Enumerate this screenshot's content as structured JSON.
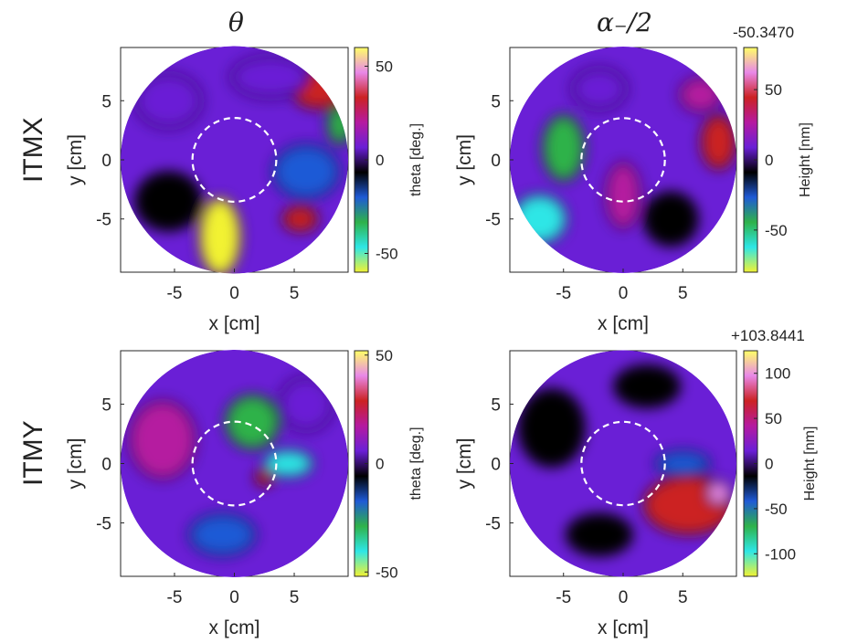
{
  "column_titles": [
    "θ",
    "α₋/2"
  ],
  "row_titles": [
    "ITMX",
    "ITMY"
  ],
  "offsets": [
    "-50.3470",
    "+103.8441"
  ],
  "colormap": [
    "#f2f233",
    "#2ee6e6",
    "#2fb24a",
    "#1f5ad6",
    "#000000",
    "#6a1fd6",
    "#b51aa0",
    "#cc2222",
    "#e888e8",
    "#ffff66"
  ],
  "chart_data": [
    {
      "type": "heatmap",
      "name": "ITMX theta",
      "xlabel": "x [cm]",
      "ylabel": "y [cm]",
      "xlim": [
        -9.5,
        9.5
      ],
      "ylim": [
        -9.5,
        9.5
      ],
      "xticks": [
        -5,
        0,
        5
      ],
      "yticks": [
        -5,
        0,
        5
      ],
      "aperture_radius_cm": 9.5,
      "dashed_circle_radius_cm": 3.5,
      "colorbar": {
        "label": "theta [deg.]",
        "range": [
          -60,
          60
        ],
        "ticks": [
          50,
          0,
          -50
        ]
      },
      "features": [
        {
          "x": -1.2,
          "y": -6.5,
          "value": -55,
          "rx": 1.5,
          "ry": 3.0
        },
        {
          "x": 7.0,
          "y": 6.0,
          "value": 35,
          "rx": 2.0,
          "ry": 1.4
        },
        {
          "x": 5.5,
          "y": -5.0,
          "value": 35,
          "rx": 1.2,
          "ry": 0.8
        },
        {
          "x": 8.8,
          "y": 3.0,
          "value": -35,
          "rx": 0.8,
          "ry": 1.4
        },
        {
          "x": 6.0,
          "y": -1.0,
          "value": -25,
          "rx": 2.5,
          "ry": 2.0
        },
        {
          "x": -5.5,
          "y": 5.0,
          "value": 12,
          "rx": 2.5,
          "ry": 2.0
        },
        {
          "x": 3.0,
          "y": 7.0,
          "value": 10,
          "rx": 3.0,
          "ry": 1.5
        },
        {
          "x": -5.5,
          "y": -3.5,
          "value": -10,
          "rx": 2.5,
          "ry": 2.2
        }
      ]
    },
    {
      "type": "heatmap",
      "name": "ITMX alpha",
      "xlabel": "x [cm]",
      "ylabel": "y [cm]",
      "xlim": [
        -9.5,
        9.5
      ],
      "ylim": [
        -9.5,
        9.5
      ],
      "xticks": [
        -5,
        0,
        5
      ],
      "yticks": [
        -5,
        0,
        5
      ],
      "aperture_radius_cm": 9.5,
      "dashed_circle_radius_cm": 3.5,
      "colorbar": {
        "label": "Height [nm]",
        "range": [
          -80,
          80
        ],
        "ticks": [
          50,
          0,
          -50
        ]
      },
      "features": [
        {
          "x": -7.0,
          "y": -5.0,
          "value": -60,
          "rx": 2.0,
          "ry": 1.8
        },
        {
          "x": -5.0,
          "y": 1.0,
          "value": -45,
          "rx": 1.5,
          "ry": 2.5
        },
        {
          "x": 8.0,
          "y": 1.5,
          "value": 40,
          "rx": 1.2,
          "ry": 2.0
        },
        {
          "x": 6.5,
          "y": 5.5,
          "value": 25,
          "rx": 1.5,
          "ry": 1.2
        },
        {
          "x": 4.0,
          "y": -5.0,
          "value": -15,
          "rx": 2.0,
          "ry": 2.0
        },
        {
          "x": 0.0,
          "y": -3.0,
          "value": 25,
          "rx": 1.2,
          "ry": 2.5
        },
        {
          "x": -2.0,
          "y": 6.0,
          "value": 15,
          "rx": 2.0,
          "ry": 1.5
        }
      ]
    },
    {
      "type": "heatmap",
      "name": "ITMY theta",
      "xlabel": "x [cm]",
      "ylabel": "y [cm]",
      "xlim": [
        -9.5,
        9.5
      ],
      "ylim": [
        -9.5,
        9.5
      ],
      "xticks": [
        -5,
        0,
        5
      ],
      "yticks": [
        -5,
        0,
        5
      ],
      "aperture_radius_cm": 9.5,
      "dashed_circle_radius_cm": 3.5,
      "colorbar": {
        "label": "theta [deg.]",
        "range": [
          -52,
          52
        ],
        "ticks": [
          50,
          0,
          -50
        ]
      },
      "features": [
        {
          "x": 4.5,
          "y": 0.0,
          "value": -45,
          "rx": 1.8,
          "ry": 0.9
        },
        {
          "x": 2.5,
          "y": -1.2,
          "value": 30,
          "rx": 0.5,
          "ry": 0.4
        },
        {
          "x": 1.5,
          "y": 3.5,
          "value": -25,
          "rx": 2.0,
          "ry": 2.0
        },
        {
          "x": -1.0,
          "y": -6.0,
          "value": -15,
          "rx": 2.5,
          "ry": 1.5
        },
        {
          "x": -6.0,
          "y": 2.0,
          "value": 12,
          "rx": 2.5,
          "ry": 3.0
        },
        {
          "x": 6.0,
          "y": 5.0,
          "value": 10,
          "rx": 2.0,
          "ry": 2.0
        }
      ]
    },
    {
      "type": "heatmap",
      "name": "ITMY alpha",
      "xlabel": "x [cm]",
      "ylabel": "y [cm]",
      "xlim": [
        -9.5,
        9.5
      ],
      "ylim": [
        -9.5,
        9.5
      ],
      "xticks": [
        -5,
        0,
        5
      ],
      "yticks": [
        -5,
        0,
        5
      ],
      "aperture_radius_cm": 9.5,
      "dashed_circle_radius_cm": 3.5,
      "colorbar": {
        "label": "Height [nm]",
        "range": [
          -125,
          125
        ],
        "ticks": [
          100,
          50,
          0,
          -50,
          -100
        ]
      },
      "features": [
        {
          "x": 5.5,
          "y": -3.5,
          "value": 60,
          "rx": 3.5,
          "ry": 2.2
        },
        {
          "x": 8.0,
          "y": -2.5,
          "value": 110,
          "rx": 0.8,
          "ry": 0.8
        },
        {
          "x": 5.0,
          "y": 0.0,
          "value": -45,
          "rx": 2.0,
          "ry": 0.8
        },
        {
          "x": -6.0,
          "y": 3.0,
          "value": -20,
          "rx": 2.5,
          "ry": 3.0
        },
        {
          "x": 2.0,
          "y": 6.5,
          "value": -15,
          "rx": 2.5,
          "ry": 1.5
        },
        {
          "x": -2.0,
          "y": -6.0,
          "value": -10,
          "rx": 2.5,
          "ry": 1.5
        }
      ]
    }
  ]
}
